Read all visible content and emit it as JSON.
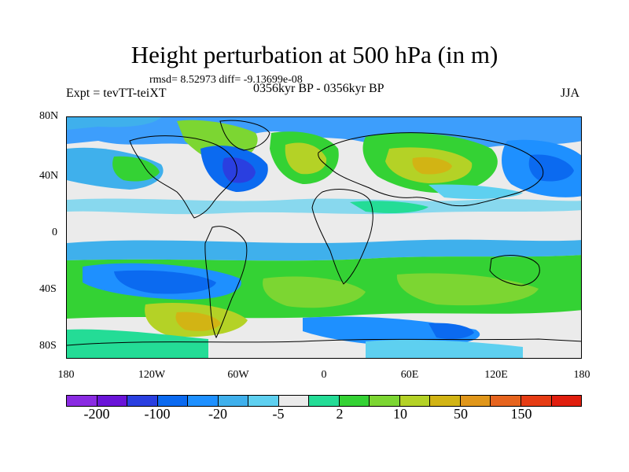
{
  "title": "Height perturbation at 500 hPa (in m)",
  "stats": "rmsd= 8.52973 diff= -9.13699e-08",
  "experiment": "Expt = tevTT-teiXT",
  "period": "0356kyr BP - 0356kyr BP",
  "season": "JJA",
  "map": {
    "y_ticks": [
      "80N",
      "40N",
      "0",
      "40S",
      "80S"
    ],
    "x_ticks": [
      "180",
      "120W",
      "60W",
      "0",
      "60E",
      "120E",
      "180"
    ]
  },
  "colorbar": {
    "colors": [
      "#8a2be2",
      "#6a14d8",
      "#2a3fe0",
      "#0b6af0",
      "#1e90ff",
      "#3fb0ec",
      "#5ed0f0",
      "#ebebeb",
      "#24dc96",
      "#34d234",
      "#7cd632",
      "#b4d226",
      "#d2b414",
      "#e0961a",
      "#e6641e",
      "#e63c14",
      "#e01e0e"
    ],
    "labels": [
      "-200",
      "-100",
      "-20",
      "-5",
      "2",
      "10",
      "50",
      "150"
    ]
  }
}
